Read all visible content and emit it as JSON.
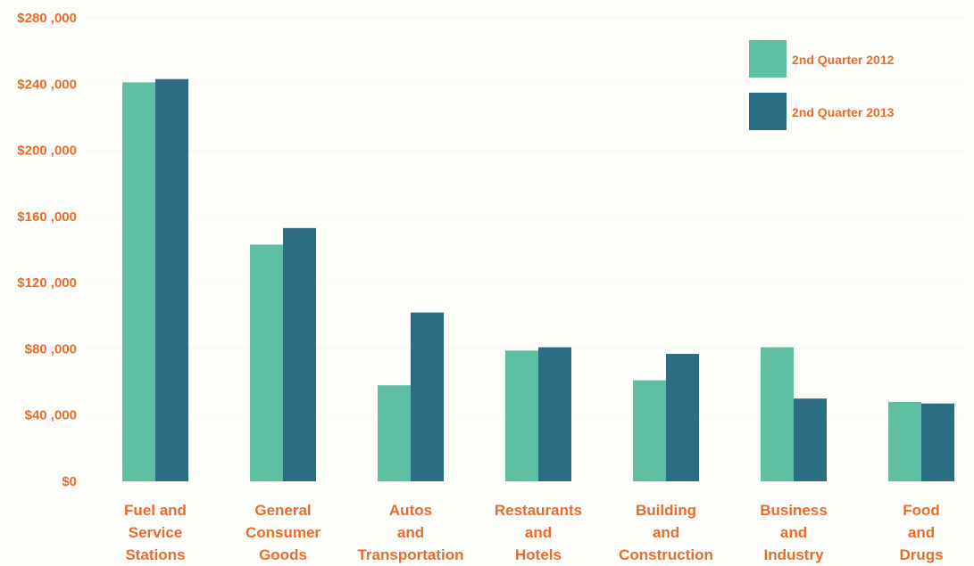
{
  "chart_data": {
    "type": "bar",
    "title": "",
    "xlabel": "",
    "ylabel": "",
    "ylim": [
      0,
      280000
    ],
    "yticks": [
      0,
      40000,
      80000,
      120000,
      160000,
      200000,
      240000,
      280000
    ],
    "ytick_labels": [
      "$0",
      "$40 ,000",
      "$80 ,000",
      "$120 ,000",
      "$160 ,000",
      "$200 ,000",
      "$240 ,000",
      "$280 ,000"
    ],
    "categories": [
      [
        "Fuel and",
        "Service",
        "Stations"
      ],
      [
        "General",
        "Consumer",
        "Goods"
      ],
      [
        "Autos",
        "and",
        "Transportation"
      ],
      [
        "Restaurants",
        "and",
        "Hotels"
      ],
      [
        "Building",
        "and",
        "Construction"
      ],
      [
        "Business",
        "and",
        "Industry"
      ],
      [
        "Food",
        "and",
        "Drugs"
      ]
    ],
    "series": [
      {
        "name": "2nd Quarter 2012",
        "color": "#5cbfa2",
        "values": [
          241000,
          143000,
          58000,
          79000,
          61000,
          81000,
          48000
        ]
      },
      {
        "name": "2nd Quarter 2013",
        "color": "#2b6d82",
        "values": [
          243000,
          153000,
          102000,
          81000,
          77000,
          50000,
          47000
        ]
      }
    ],
    "grid": true,
    "legend_position": "top-right",
    "label_color": "#ea6b2a"
  }
}
